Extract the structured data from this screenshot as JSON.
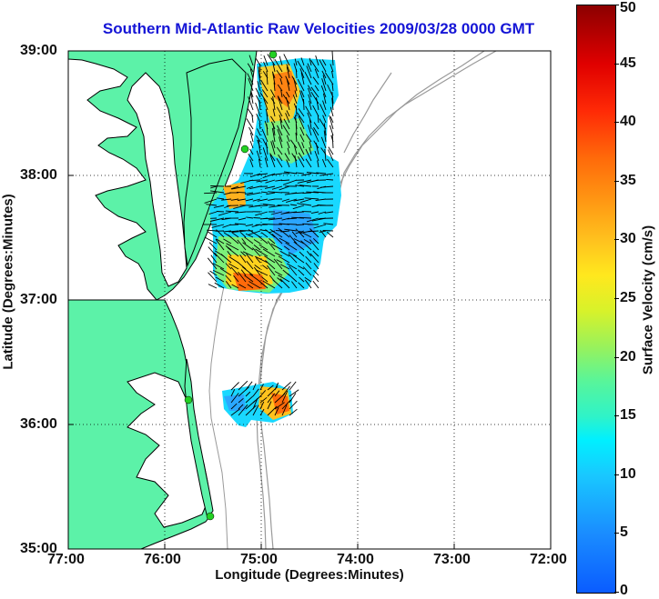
{
  "title": "Southern Mid-Atlantic Raw Velocities 2009/03/28 0000 GMT",
  "axes": {
    "xlabel": "Longitude (Degrees:Minutes)",
    "ylabel": "Latitude (Degrees:Minutes)",
    "x_ticks": [
      "77:00",
      "76:00",
      "75:00",
      "74:00",
      "73:00",
      "72:00"
    ],
    "y_ticks": [
      "39:00",
      "38:00",
      "37:00",
      "36:00",
      "35:00"
    ],
    "x_range": [
      -77,
      -72
    ],
    "y_range": [
      35,
      39
    ],
    "grid": "dotted"
  },
  "colorbar": {
    "label": "Surface Velocity (cm/s)",
    "range": [
      0,
      50
    ],
    "ticks": [
      "50",
      "45",
      "40",
      "35",
      "30",
      "25",
      "20",
      "15",
      "10",
      "5",
      "0"
    ]
  },
  "colors": {
    "land": "#5cf2a8",
    "coastline": "#000000",
    "bathymetry": "#9a9a9a",
    "title": "#1515d6",
    "station": "#22d022"
  }
}
